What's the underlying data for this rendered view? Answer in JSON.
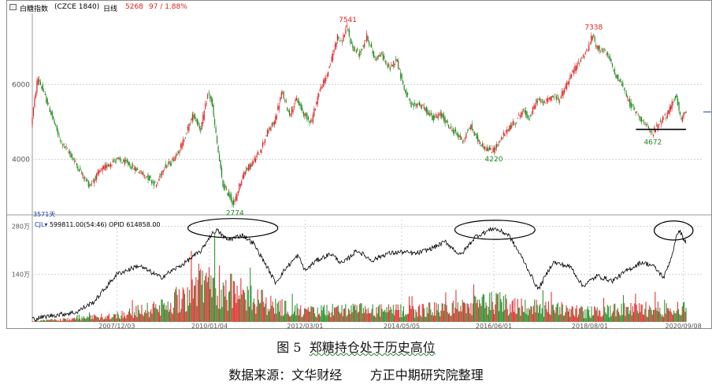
{
  "header": {
    "name": "白糖指数",
    "code": "(CZCE 1840)",
    "period": "日线",
    "last": "5268",
    "change": "97 / 1.88%"
  },
  "sub_header": {
    "indicator": "CJL",
    "values": "599811.00(54:46)",
    "opid": "OPID 614858.00"
  },
  "count_label": "3571天",
  "caption": {
    "figure": "图 5",
    "title": "郑糖持仓处于历史高位",
    "source_label": "数据来源：",
    "source_value": "文华财经",
    "org": "方正中期研究院整理"
  },
  "colors": {
    "up": "#e02020",
    "down": "#1e8a1e",
    "line": "#000000",
    "grid": "#d0d0d0",
    "axis_text": "#555555",
    "price_annotation_high": "#e02020",
    "price_annotation_low": "#1e8a1e"
  },
  "chart_data": [
    {
      "type": "candlestick",
      "title": "白糖指数 (CZCE 1840) 日线",
      "y_ticks": [
        4000,
        6000
      ],
      "ylim": [
        2600,
        7900
      ],
      "x_ticks": [
        "2007/12/03",
        "2010/01/04",
        "2012/03/01",
        "2014/05/05",
        "2016/06/01",
        "2018/08/01",
        "2020/09/08"
      ],
      "xlim": [
        "2006/01/06",
        "2020/09/30"
      ],
      "close_path": [
        [
          "2006/01/06",
          4900
        ],
        [
          "2006/03/01",
          6200
        ],
        [
          "2006/06/01",
          5400
        ],
        [
          "2006/09/01",
          4500
        ],
        [
          "2006/12/01",
          4100
        ],
        [
          "2007/03/01",
          3600
        ],
        [
          "2007/05/01",
          3300
        ],
        [
          "2007/08/01",
          3700
        ],
        [
          "2007/12/03",
          4000
        ],
        [
          "2008/03/01",
          3900
        ],
        [
          "2008/06/01",
          3700
        ],
        [
          "2008/09/01",
          3500
        ],
        [
          "2008/11/01",
          3300
        ],
        [
          "2009/01/01",
          3800
        ],
        [
          "2009/03/01",
          3900
        ],
        [
          "2009/06/01",
          4400
        ],
        [
          "2009/09/01",
          5200
        ],
        [
          "2009/11/01",
          4800
        ],
        [
          "2010/01/04",
          5800
        ],
        [
          "2010/02/01",
          5500
        ],
        [
          "2010/03/01",
          4800
        ],
        [
          "2010/05/01",
          3300
        ],
        [
          "2010/07/01",
          3000
        ],
        [
          "2010/08/01",
          2774
        ],
        [
          "2010/09/15",
          3300
        ],
        [
          "2010/11/01",
          3700
        ],
        [
          "2011/01/01",
          3900
        ],
        [
          "2011/03/01",
          4200
        ],
        [
          "2011/05/01",
          4700
        ],
        [
          "2011/07/01",
          5000
        ],
        [
          "2011/09/01",
          5800
        ],
        [
          "2011/11/01",
          5200
        ],
        [
          "2012/01/01",
          5600
        ],
        [
          "2012/03/01",
          5200
        ],
        [
          "2012/05/01",
          5000
        ],
        [
          "2012/07/01",
          5800
        ],
        [
          "2012/09/01",
          6200
        ],
        [
          "2012/10/15",
          6700
        ],
        [
          "2012/12/01",
          7300
        ],
        [
          "2013/01/01",
          7100
        ],
        [
          "2013/02/15",
          7541
        ],
        [
          "2013/04/01",
          7000
        ],
        [
          "2013/06/01",
          6800
        ],
        [
          "2013/08/01",
          7300
        ],
        [
          "2013/10/01",
          6700
        ],
        [
          "2013/12/01",
          6800
        ],
        [
          "2014/02/01",
          6400
        ],
        [
          "2014/04/01",
          6700
        ],
        [
          "2014/06/01",
          5900
        ],
        [
          "2014/08/01",
          5400
        ],
        [
          "2014/10/01",
          5500
        ],
        [
          "2014/12/01",
          5300
        ],
        [
          "2015/02/01",
          5100
        ],
        [
          "2015/04/01",
          5200
        ],
        [
          "2015/06/01",
          4900
        ],
        [
          "2015/08/01",
          4700
        ],
        [
          "2015/10/01",
          4500
        ],
        [
          "2015/12/01",
          4900
        ],
        [
          "2016/02/01",
          4500
        ],
        [
          "2016/04/01",
          4300
        ],
        [
          "2016/06/01",
          4220
        ],
        [
          "2016/08/01",
          4500
        ],
        [
          "2016/10/01",
          4800
        ],
        [
          "2016/12/01",
          5000
        ],
        [
          "2017/02/01",
          5300
        ],
        [
          "2017/04/01",
          5100
        ],
        [
          "2017/06/01",
          5600
        ],
        [
          "2017/08/01",
          5500
        ],
        [
          "2017/10/01",
          5700
        ],
        [
          "2017/12/01",
          5600
        ],
        [
          "2018/02/01",
          6000
        ],
        [
          "2018/04/01",
          6400
        ],
        [
          "2018/06/01",
          6700
        ],
        [
          "2018/08/01",
          7000
        ],
        [
          "2018/09/01",
          7338
        ],
        [
          "2018/10/01",
          7000
        ],
        [
          "2018/12/01",
          6900
        ],
        [
          "2019/01/15",
          6700
        ],
        [
          "2019/03/01",
          6300
        ],
        [
          "2019/05/01",
          6000
        ],
        [
          "2019/07/01",
          5500
        ],
        [
          "2019/08/15",
          5300
        ],
        [
          "2019/10/01",
          5100
        ],
        [
          "2019/11/15",
          4900
        ],
        [
          "2020/01/01",
          4672
        ],
        [
          "2020/02/15",
          4900
        ],
        [
          "2020/04/01",
          5100
        ],
        [
          "2020/05/15",
          5200
        ],
        [
          "2020/06/15",
          5500
        ],
        [
          "2020/07/15",
          5700
        ],
        [
          "2020/08/15",
          5300
        ],
        [
          "2020/09/01",
          5000
        ],
        [
          "2020/09/30",
          5268
        ]
      ],
      "annotations": [
        {
          "label": "7541",
          "x": "2013/02/15",
          "y": 7541,
          "kind": "high"
        },
        {
          "label": "7338",
          "x": "2018/09/01",
          "y": 7338,
          "kind": "high"
        },
        {
          "label": "2774",
          "x": "2010/08/01",
          "y": 2774,
          "kind": "low"
        },
        {
          "label": "4220",
          "x": "2016/06/01",
          "y": 4220,
          "kind": "low"
        },
        {
          "label": "4672",
          "x": "2020/01/01",
          "y": 4672,
          "kind": "low"
        }
      ],
      "support_line": {
        "from": "2019/08/15",
        "to": "2020/09/30",
        "y": 4800
      }
    },
    {
      "type": "bar",
      "title": "CJL",
      "y_ticks": [
        {
          "value": 140,
          "label": "140万"
        },
        {
          "value": 280,
          "label": "280万"
        }
      ],
      "ylim": [
        0,
        300
      ],
      "xlim": [
        "2006/01/06",
        "2020/09/30"
      ],
      "unit": "万",
      "volume_envelope": [
        [
          "2006/01/06",
          4
        ],
        [
          "2007/01/01",
          12
        ],
        [
          "2007/12/03",
          28
        ],
        [
          "2008/06/01",
          45
        ],
        [
          "2009/01/01",
          60
        ],
        [
          "2009/06/01",
          110
        ],
        [
          "2010/01/04",
          175
        ],
        [
          "2010/06/01",
          130
        ],
        [
          "2011/01/01",
          95
        ],
        [
          "2011/06/01",
          70
        ],
        [
          "2012/03/01",
          40
        ],
        [
          "2013/01/01",
          50
        ],
        [
          "2014/05/05",
          45
        ],
        [
          "2015/06/01",
          55
        ],
        [
          "2016/06/01",
          80
        ],
        [
          "2017/06/01",
          60
        ],
        [
          "2018/08/01",
          40
        ],
        [
          "2019/06/01",
          50
        ],
        [
          "2020/09/08",
          60
        ]
      ],
      "open_interest": [
        [
          "2006/01/06",
          8
        ],
        [
          "2006/06/01",
          18
        ],
        [
          "2007/01/01",
          28
        ],
        [
          "2007/06/01",
          60
        ],
        [
          "2007/12/03",
          140
        ],
        [
          "2008/06/01",
          165
        ],
        [
          "2008/12/01",
          130
        ],
        [
          "2009/06/01",
          170
        ],
        [
          "2009/11/01",
          210
        ],
        [
          "2010/01/04",
          250
        ],
        [
          "2010/03/01",
          270
        ],
        [
          "2010/06/01",
          240
        ],
        [
          "2010/10/01",
          255
        ],
        [
          "2011/01/01",
          230
        ],
        [
          "2011/04/01",
          175
        ],
        [
          "2011/07/01",
          115
        ],
        [
          "2011/10/01",
          160
        ],
        [
          "2012/01/01",
          195
        ],
        [
          "2012/03/01",
          150
        ],
        [
          "2012/06/01",
          180
        ],
        [
          "2012/10/01",
          200
        ],
        [
          "2013/01/01",
          170
        ],
        [
          "2013/05/01",
          210
        ],
        [
          "2013/09/01",
          180
        ],
        [
          "2014/01/01",
          200
        ],
        [
          "2014/05/05",
          205
        ],
        [
          "2014/09/01",
          200
        ],
        [
          "2015/01/01",
          215
        ],
        [
          "2015/05/01",
          235
        ],
        [
          "2015/09/01",
          195
        ],
        [
          "2016/01/01",
          250
        ],
        [
          "2016/06/01",
          275
        ],
        [
          "2016/10/01",
          255
        ],
        [
          "2017/02/01",
          180
        ],
        [
          "2017/06/01",
          95
        ],
        [
          "2017/10/01",
          175
        ],
        [
          "2018/03/01",
          160
        ],
        [
          "2018/06/01",
          105
        ],
        [
          "2018/10/01",
          135
        ],
        [
          "2019/02/01",
          120
        ],
        [
          "2019/06/01",
          150
        ],
        [
          "2019/10/01",
          175
        ],
        [
          "2020/01/01",
          165
        ],
        [
          "2020/04/01",
          130
        ],
        [
          "2020/06/01",
          190
        ],
        [
          "2020/08/01",
          272
        ],
        [
          "2020/09/30",
          230
        ]
      ],
      "highlight_ellipses": [
        {
          "center": "2010/07/15",
          "y": 275,
          "half_width_days": 370,
          "half_height": 28
        },
        {
          "center": "2016/06/10",
          "y": 270,
          "half_width_days": 330,
          "half_height": 28
        },
        {
          "center": "2020/06/20",
          "y": 268,
          "half_width_days": 160,
          "half_height": 28
        }
      ]
    }
  ]
}
